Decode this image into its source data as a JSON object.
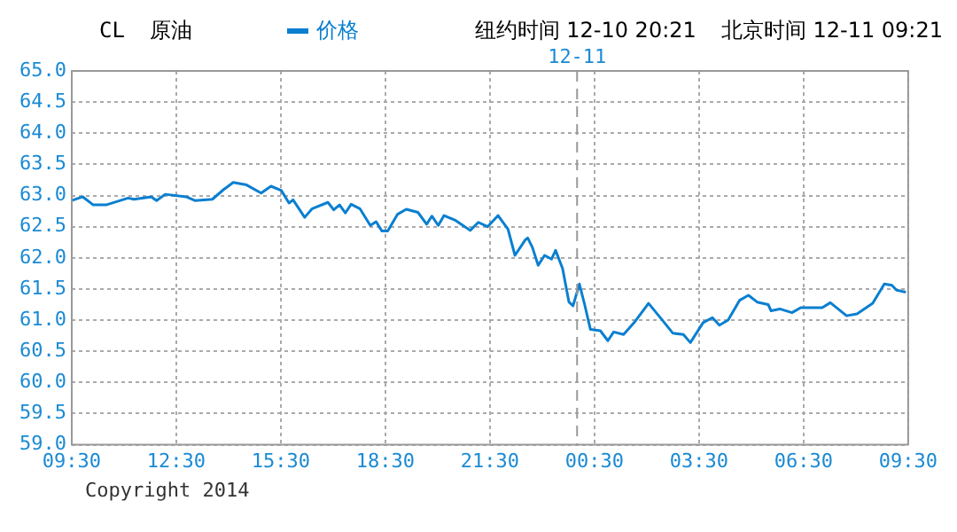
{
  "chart_data": {
    "type": "line",
    "title": "CL",
    "subtitle": "原油",
    "annotations": [
      "纽约时间 12-10 20:21",
      "北京时间 12-11 09:21",
      "Copyright 2014"
    ],
    "x": [
      "2014-12-10T09:30",
      "2014-12-10T09:49",
      "2014-12-10T10:07",
      "2014-12-10T10:29",
      "2014-12-10T11:07",
      "2014-12-10T11:17",
      "2014-12-10T11:47",
      "2014-12-10T11:56",
      "2014-12-10T12:11",
      "2014-12-10T12:47",
      "2014-12-10T13:02",
      "2014-12-10T13:32",
      "2014-12-10T13:52",
      "2014-12-10T14:08",
      "2014-12-10T14:31",
      "2014-12-10T14:56",
      "2014-12-10T15:13",
      "2014-12-10T15:31",
      "2014-12-10T15:44",
      "2014-12-10T15:51",
      "2014-12-10T16:11",
      "2014-12-10T16:24",
      "2014-12-10T16:51",
      "2014-12-10T17:01",
      "2014-12-10T17:11",
      "2014-12-10T17:21",
      "2014-12-10T17:31",
      "2014-12-10T17:46",
      "2014-12-10T18:04",
      "2014-12-10T18:14",
      "2014-12-10T18:24",
      "2014-12-10T18:34",
      "2014-12-10T18:51",
      "2014-12-10T19:06",
      "2014-12-10T19:26",
      "2014-12-10T19:41",
      "2014-12-10T19:50",
      "2014-12-10T20:01",
      "2014-12-10T20:11",
      "2014-12-10T20:31",
      "2014-12-10T20:56",
      "2014-12-10T21:10",
      "2014-12-10T21:26",
      "2014-12-10T21:44",
      "2014-12-10T22:01",
      "2014-12-10T22:13",
      "2014-12-10T22:31",
      "2014-12-10T22:35",
      "2014-12-10T22:43",
      "2014-12-10T22:53",
      "2014-12-10T23:04",
      "2014-12-10T23:16",
      "2014-12-10T23:23",
      "2014-12-10T23:35",
      "2014-12-10T23:46",
      "2014-12-10T23:53",
      "2014-12-11T00:04",
      "2014-12-11T00:13",
      "2014-12-11T00:23",
      "2014-12-11T00:40",
      "2014-12-11T00:53",
      "2014-12-11T01:03",
      "2014-12-11T01:20",
      "2014-12-11T01:40",
      "2014-12-11T02:03",
      "2014-12-11T02:25",
      "2014-12-11T02:45",
      "2014-12-11T03:03",
      "2014-12-11T03:15",
      "2014-12-11T03:37",
      "2014-12-11T03:53",
      "2014-12-11T04:05",
      "2014-12-11T04:20",
      "2014-12-11T04:40",
      "2014-12-11T04:55",
      "2014-12-11T05:10",
      "2014-12-11T05:29",
      "2014-12-11T05:34",
      "2014-12-11T05:49",
      "2014-12-11T06:10",
      "2014-12-11T06:25",
      "2014-12-11T07:02",
      "2014-12-11T07:16",
      "2014-12-11T07:44",
      "2014-12-11T08:02",
      "2014-12-11T08:29",
      "2014-12-11T08:49",
      "2014-12-11T09:02",
      "2014-12-11T09:10",
      "2014-12-11T09:26"
    ],
    "series": [
      {
        "name": "价格",
        "color": "#0a7fd0",
        "values": [
          62.92,
          62.98,
          62.85,
          62.85,
          62.96,
          62.94,
          62.98,
          62.92,
          63.02,
          62.98,
          62.92,
          62.94,
          63.1,
          63.21,
          63.17,
          63.04,
          63.15,
          63.08,
          62.88,
          62.93,
          62.65,
          62.79,
          62.89,
          62.77,
          62.85,
          62.72,
          62.86,
          62.79,
          62.52,
          62.58,
          62.43,
          62.43,
          62.7,
          62.78,
          62.73,
          62.54,
          62.67,
          62.52,
          62.68,
          62.6,
          62.44,
          62.57,
          62.5,
          62.68,
          62.46,
          62.04,
          62.29,
          62.32,
          62.17,
          61.88,
          62.04,
          61.98,
          62.12,
          61.83,
          61.29,
          61.23,
          61.58,
          61.25,
          60.85,
          60.83,
          60.67,
          60.81,
          60.77,
          60.98,
          61.27,
          61.02,
          60.79,
          60.77,
          60.64,
          60.96,
          61.04,
          60.92,
          61.0,
          61.32,
          61.4,
          61.29,
          61.25,
          61.15,
          61.18,
          61.12,
          61.2,
          61.2,
          61.28,
          61.07,
          61.1,
          61.27,
          61.58,
          61.56,
          61.48,
          61.45
        ]
      }
    ],
    "xlim": [
      "2014-12-10T09:30",
      "2014-12-11T09:30"
    ],
    "xticks": [
      {
        "value": "2014-12-10T09:30",
        "label": "09:30"
      },
      {
        "value": "2014-12-10T12:30",
        "label": "12:30"
      },
      {
        "value": "2014-12-10T15:30",
        "label": "15:30"
      },
      {
        "value": "2014-12-10T18:30",
        "label": "18:30"
      },
      {
        "value": "2014-12-10T21:30",
        "label": "21:30"
      },
      {
        "value": "2014-12-11T00:30",
        "label": "00:30"
      },
      {
        "value": "2014-12-11T03:30",
        "label": "03:30"
      },
      {
        "value": "2014-12-11T06:30",
        "label": "06:30"
      },
      {
        "value": "2014-12-11T09:30",
        "label": "09:30"
      }
    ],
    "ylim": [
      59,
      65
    ],
    "yticks": [
      {
        "value": 59,
        "label": "59.0"
      },
      {
        "value": 59.5,
        "label": "59.5"
      },
      {
        "value": 60,
        "label": "60.0"
      },
      {
        "value": 60.5,
        "label": "60.5"
      },
      {
        "value": 61,
        "label": "61.0"
      },
      {
        "value": 61.5,
        "label": "61.5"
      },
      {
        "value": 62,
        "label": "62.0"
      },
      {
        "value": 62.5,
        "label": "62.5"
      },
      {
        "value": 63,
        "label": "63.0"
      },
      {
        "value": 63.5,
        "label": "63.5"
      },
      {
        "value": 64,
        "label": "64.0"
      },
      {
        "value": 64.5,
        "label": "64.5"
      },
      {
        "value": 65,
        "label": "65.0"
      }
    ],
    "ref_lines": [
      {
        "axis": "x",
        "value": "2014-12-11T00:00",
        "label": "12-11",
        "color": "#999999",
        "line_style": "dashed"
      }
    ],
    "grid": true,
    "legend": "top",
    "marker": "none",
    "line_style": "solid"
  }
}
